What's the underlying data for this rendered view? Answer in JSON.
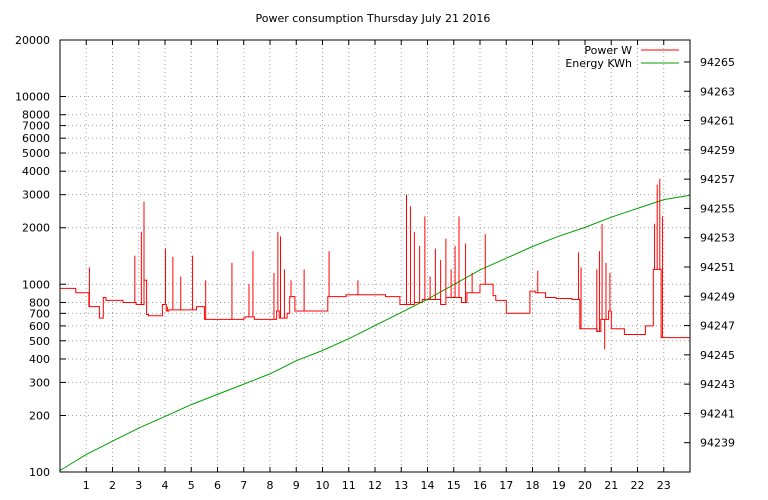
{
  "chart_data": {
    "type": "line",
    "title": "Power consumption Thursday July 21 2016",
    "xlabel": "",
    "ylabel": "",
    "x_ticks": [
      1,
      2,
      3,
      4,
      5,
      6,
      7,
      8,
      9,
      10,
      11,
      12,
      13,
      14,
      15,
      16,
      17,
      18,
      19,
      20,
      21,
      22,
      23
    ],
    "xlim": [
      0,
      24
    ],
    "y_left": {
      "scale": "log",
      "lim": [
        100,
        20000
      ],
      "ticks": [
        100,
        200,
        300,
        400,
        500,
        600,
        700,
        800,
        1000,
        2000,
        3000,
        4000,
        5000,
        6000,
        7000,
        8000,
        10000,
        20000
      ]
    },
    "y_right": {
      "scale": "linear",
      "lim": [
        94237,
        94266.5
      ],
      "ticks": [
        94239,
        94241,
        94243,
        94245,
        94247,
        94249,
        94251,
        94253,
        94255,
        94257,
        94259,
        94261,
        94263,
        94265
      ]
    },
    "grid": true,
    "legend_position": "top-right",
    "series": [
      {
        "name": "Power W",
        "axis": "left",
        "color": "#ff0000",
        "x": [
          0,
          0.6,
          0.6,
          1.1,
          1.1,
          1.5,
          1.5,
          1.65,
          1.65,
          1.75,
          1.75,
          2.4,
          2.4,
          2.9,
          2.9,
          3.2,
          3.2,
          3.3,
          3.3,
          3.37,
          3.37,
          3.9,
          3.9,
          4.05,
          4.05,
          4.15,
          4.15,
          5.2,
          5.2,
          5.5,
          5.5,
          7.0,
          7.0,
          7.05,
          7.05,
          7.4,
          7.4,
          8.25,
          8.25,
          8.35,
          8.35,
          8.65,
          8.65,
          8.75,
          8.75,
          8.95,
          8.95,
          9.5,
          9.5,
          10.2,
          10.2,
          10.9,
          10.9,
          11.0,
          11.0,
          12.4,
          12.4,
          12.95,
          12.95,
          13.5,
          13.5,
          13.8,
          13.8,
          14.5,
          14.5,
          14.7,
          14.7,
          15.3,
          15.3,
          15.5,
          15.5,
          16.0,
          16.0,
          16.5,
          16.5,
          16.6,
          16.6,
          17.0,
          17.0,
          17.9,
          17.9,
          18.1,
          18.1,
          18.5,
          18.5,
          18.9,
          18.9,
          19.5,
          19.5,
          19.8,
          19.8,
          20.45,
          20.45,
          20.6,
          20.6,
          20.9,
          20.9,
          21.0,
          21.0,
          21.5,
          21.5,
          22.3,
          22.3,
          22.6,
          22.6,
          22.9,
          22.9,
          24
        ],
        "values": [
          950,
          950,
          900,
          900,
          760,
          760,
          660,
          660,
          850,
          850,
          820,
          820,
          800,
          800,
          780,
          780,
          1050,
          1050,
          690,
          690,
          680,
          680,
          780,
          780,
          720,
          720,
          730,
          730,
          760,
          760,
          650,
          650,
          660,
          660,
          670,
          670,
          650,
          650,
          720,
          720,
          660,
          660,
          700,
          700,
          860,
          860,
          720,
          720,
          720,
          720,
          860,
          860,
          880,
          880,
          880,
          880,
          860,
          860,
          780,
          780,
          800,
          800,
          830,
          830,
          780,
          780,
          850,
          850,
          800,
          800,
          900,
          900,
          1000,
          1000,
          870,
          870,
          820,
          820,
          700,
          700,
          920,
          920,
          900,
          900,
          850,
          850,
          840,
          840,
          830,
          830,
          580,
          580,
          560,
          560,
          650,
          650,
          720,
          720,
          580,
          580,
          540,
          540,
          600,
          600,
          1200,
          1200,
          520,
          520
        ]
      },
      {
        "name": "Energy KWh",
        "axis": "right",
        "color": "#00a000",
        "x": [
          0,
          1,
          2,
          3,
          4,
          5,
          6,
          7,
          8,
          9,
          10,
          11,
          12,
          13,
          14,
          15,
          16,
          17,
          18,
          19,
          20,
          21,
          22,
          23,
          24
        ],
        "values": [
          94237.1,
          94238.2,
          94239.1,
          94240.0,
          94240.8,
          94241.6,
          94242.3,
          94243.0,
          94243.7,
          94244.6,
          94245.3,
          94246.1,
          94247.0,
          94247.9,
          94248.8,
          94249.8,
          94250.8,
          94251.6,
          94252.4,
          94253.1,
          94253.7,
          94254.4,
          94255.0,
          94255.6,
          94255.9
        ]
      }
    ],
    "spikes": [
      {
        "x": 1.12,
        "v": 1230
      },
      {
        "x": 2.85,
        "v": 1420
      },
      {
        "x": 3.1,
        "v": 1900
      },
      {
        "x": 3.2,
        "v": 2750
      },
      {
        "x": 3.28,
        "v": 1050
      },
      {
        "x": 4.02,
        "v": 1550
      },
      {
        "x": 4.1,
        "v": 760
      },
      {
        "x": 4.3,
        "v": 1400
      },
      {
        "x": 4.6,
        "v": 1100
      },
      {
        "x": 5.05,
        "v": 1420
      },
      {
        "x": 5.55,
        "v": 1050
      },
      {
        "x": 6.55,
        "v": 1300
      },
      {
        "x": 7.2,
        "v": 1000
      },
      {
        "x": 7.35,
        "v": 1500
      },
      {
        "x": 8.15,
        "v": 1150
      },
      {
        "x": 8.3,
        "v": 1900
      },
      {
        "x": 8.4,
        "v": 1800
      },
      {
        "x": 8.55,
        "v": 1200
      },
      {
        "x": 8.8,
        "v": 1050
      },
      {
        "x": 9.3,
        "v": 1200
      },
      {
        "x": 10.25,
        "v": 1500
      },
      {
        "x": 11.35,
        "v": 1050
      },
      {
        "x": 13.2,
        "v": 3000
      },
      {
        "x": 13.35,
        "v": 2600
      },
      {
        "x": 13.5,
        "v": 1900
      },
      {
        "x": 13.7,
        "v": 1600
      },
      {
        "x": 13.9,
        "v": 2300
      },
      {
        "x": 14.1,
        "v": 1100
      },
      {
        "x": 14.3,
        "v": 1550
      },
      {
        "x": 14.5,
        "v": 1350
      },
      {
        "x": 14.7,
        "v": 1750
      },
      {
        "x": 14.9,
        "v": 1200
      },
      {
        "x": 15.05,
        "v": 1600
      },
      {
        "x": 15.2,
        "v": 2300
      },
      {
        "x": 15.45,
        "v": 1650
      },
      {
        "x": 15.7,
        "v": 1150
      },
      {
        "x": 16.2,
        "v": 1850
      },
      {
        "x": 18.2,
        "v": 1180
      },
      {
        "x": 19.75,
        "v": 1480
      },
      {
        "x": 19.85,
        "v": 1230
      },
      {
        "x": 20.45,
        "v": 1200
      },
      {
        "x": 20.55,
        "v": 1500
      },
      {
        "x": 20.65,
        "v": 2100
      },
      {
        "x": 20.75,
        "v": 450
      },
      {
        "x": 20.8,
        "v": 1300
      },
      {
        "x": 20.95,
        "v": 1150
      },
      {
        "x": 22.65,
        "v": 2100
      },
      {
        "x": 22.75,
        "v": 3400
      },
      {
        "x": 22.85,
        "v": 3650
      },
      {
        "x": 22.95,
        "v": 2300
      }
    ]
  }
}
